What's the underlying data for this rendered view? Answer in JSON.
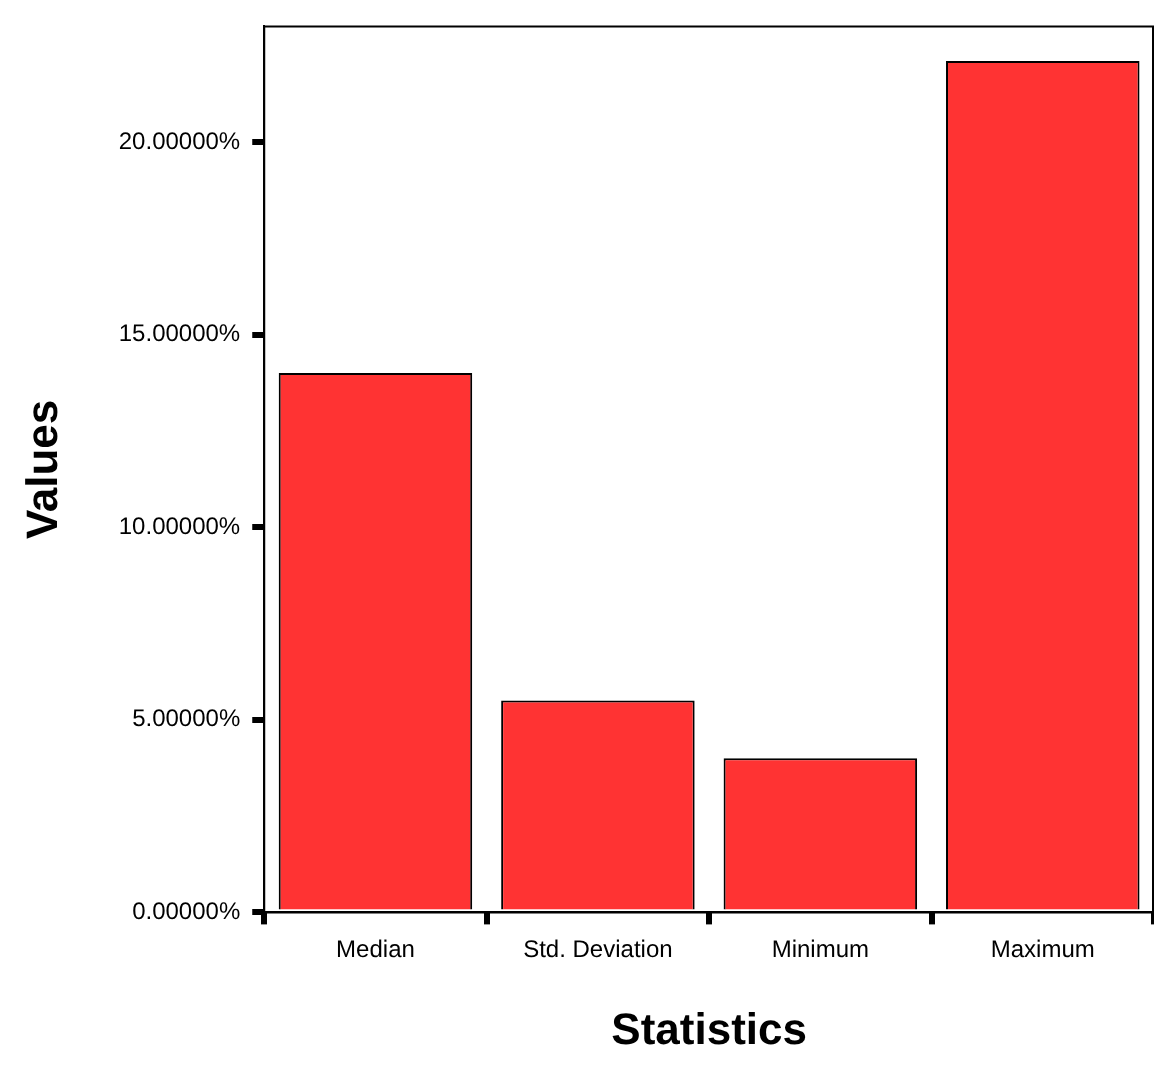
{
  "chart_data": {
    "type": "bar",
    "xlabel": "Statistics",
    "ylabel": "Values",
    "categories": [
      "Median",
      "Std. Deviation",
      "Minimum",
      "Maximum"
    ],
    "values": [
      14.0,
      5.5,
      4.0,
      22.1
    ],
    "color": "#ff3333",
    "ylim": [
      0,
      23
    ],
    "yticks": [
      {
        "value": 0,
        "label": "0.00000%"
      },
      {
        "value": 5,
        "label": "5.00000%"
      },
      {
        "value": 10,
        "label": "10.00000%"
      },
      {
        "value": 15,
        "label": "15.00000%"
      },
      {
        "value": 20,
        "label": "20.00000%"
      }
    ],
    "grid": false,
    "legend": false
  }
}
